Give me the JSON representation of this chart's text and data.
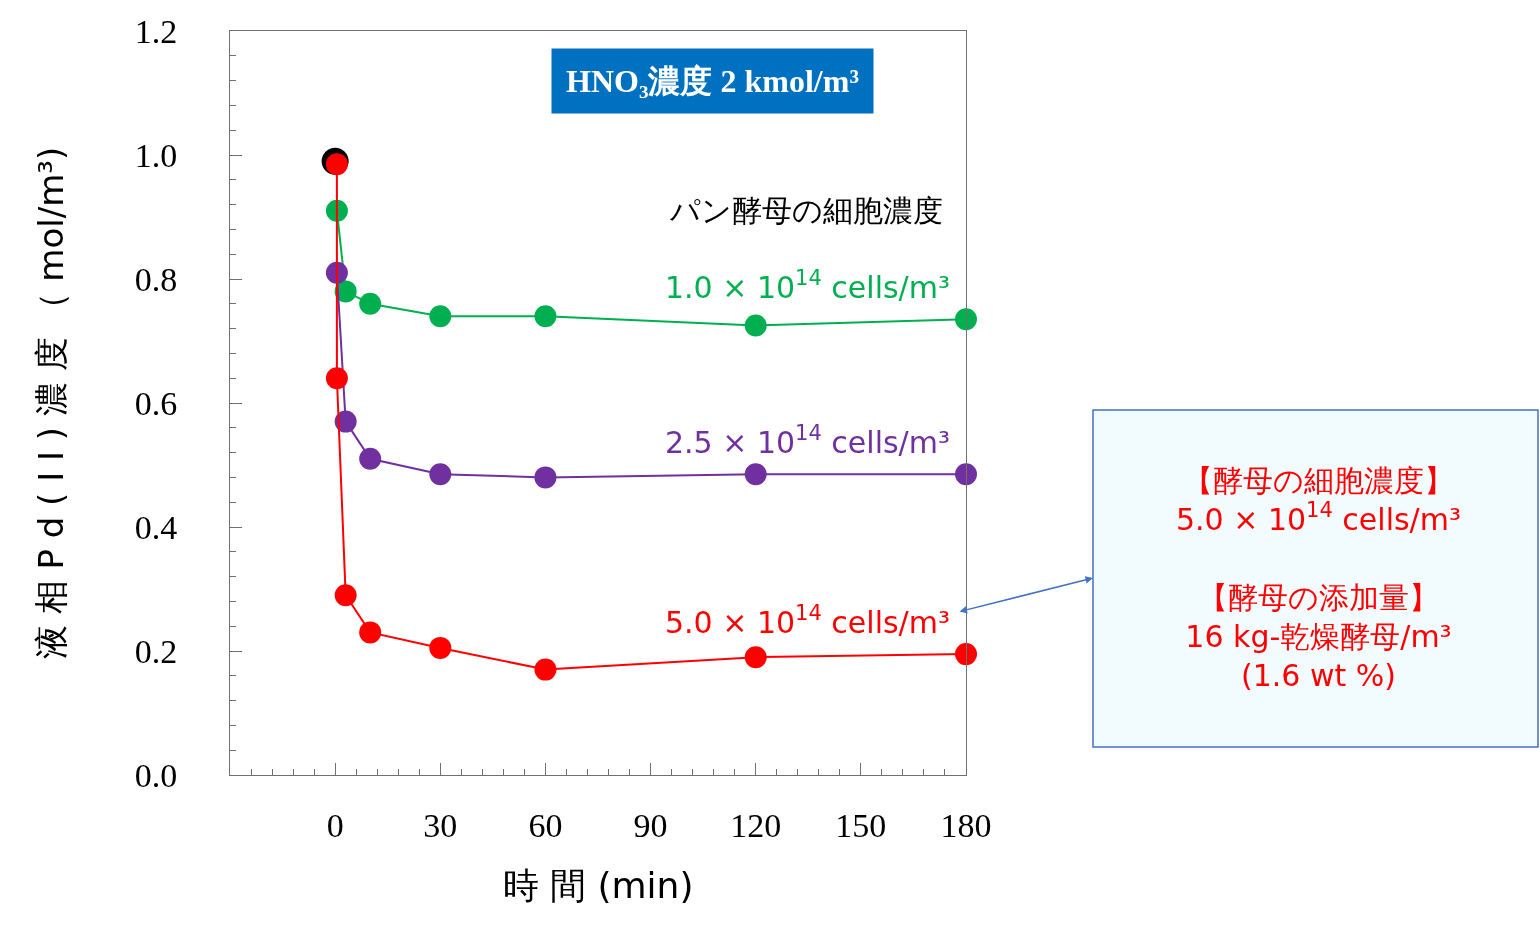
{
  "chart_data": {
    "type": "line",
    "title": "HNO₃濃度 2 kmol/m³",
    "xlabel": "時 間 (min)",
    "ylabel": "液 相 P d ( I I ) 濃 度 （ mol/m³)",
    "xlim": [
      -30,
      180
    ],
    "xticks": [
      0,
      30,
      60,
      90,
      120,
      150,
      180
    ],
    "ylim": [
      0,
      1.2
    ],
    "yticks": [
      {
        "value": 0,
        "label": "0.0"
      },
      {
        "value": 0.2,
        "label": "0.2"
      },
      {
        "value": 0.4,
        "label": "0.4"
      },
      {
        "value": 0.6,
        "label": "0.6"
      },
      {
        "value": 0.8,
        "label": "0.8"
      },
      {
        "value": 1.0,
        "label": "1.0"
      },
      {
        "value": 1.2,
        "label": "1.2"
      }
    ],
    "legend": false,
    "marker": "circle",
    "line_style": "solid",
    "legend_title": "パン酵母の細胞濃度",
    "series": [
      {
        "name": "1.0 × 10$^{14}$ cells/m³",
        "color": "#00b050",
        "x": [
          0.5,
          3,
          10,
          30,
          60,
          120,
          180
        ],
        "values": [
          0.91,
          0.78,
          0.76,
          0.74,
          0.74,
          0.725,
          0.735
        ]
      },
      {
        "name": "2.5 × 10$^{14}$ cells/m³",
        "color": "#7030a0",
        "x": [
          0.5,
          3,
          10,
          30,
          60,
          120,
          180
        ],
        "values": [
          0.81,
          0.57,
          0.51,
          0.485,
          0.48,
          0.485,
          0.485
        ]
      },
      {
        "type": "scatter",
        "color": "#000000",
        "x": [
          0
        ],
        "values": [
          0.99
        ]
      },
      {
        "name": "5.0 × 10$^{14}$ cells/m³",
        "color": "#ff0000",
        "x": [
          0.5,
          0.5,
          3,
          10,
          30,
          60,
          120,
          180
        ],
        "values": [
          0.985,
          0.64,
          0.29,
          0.23,
          0.205,
          0.17,
          0.19,
          0.195
        ]
      }
    ],
    "annotations": [
      "【酵母の細胞濃度】\n5.0 × 10$^{14}$ cells/m³\n\n【酵母の添加量】\n16 kg-乾燥酵母/m³\n(1.6 wt %)"
    ]
  }
}
